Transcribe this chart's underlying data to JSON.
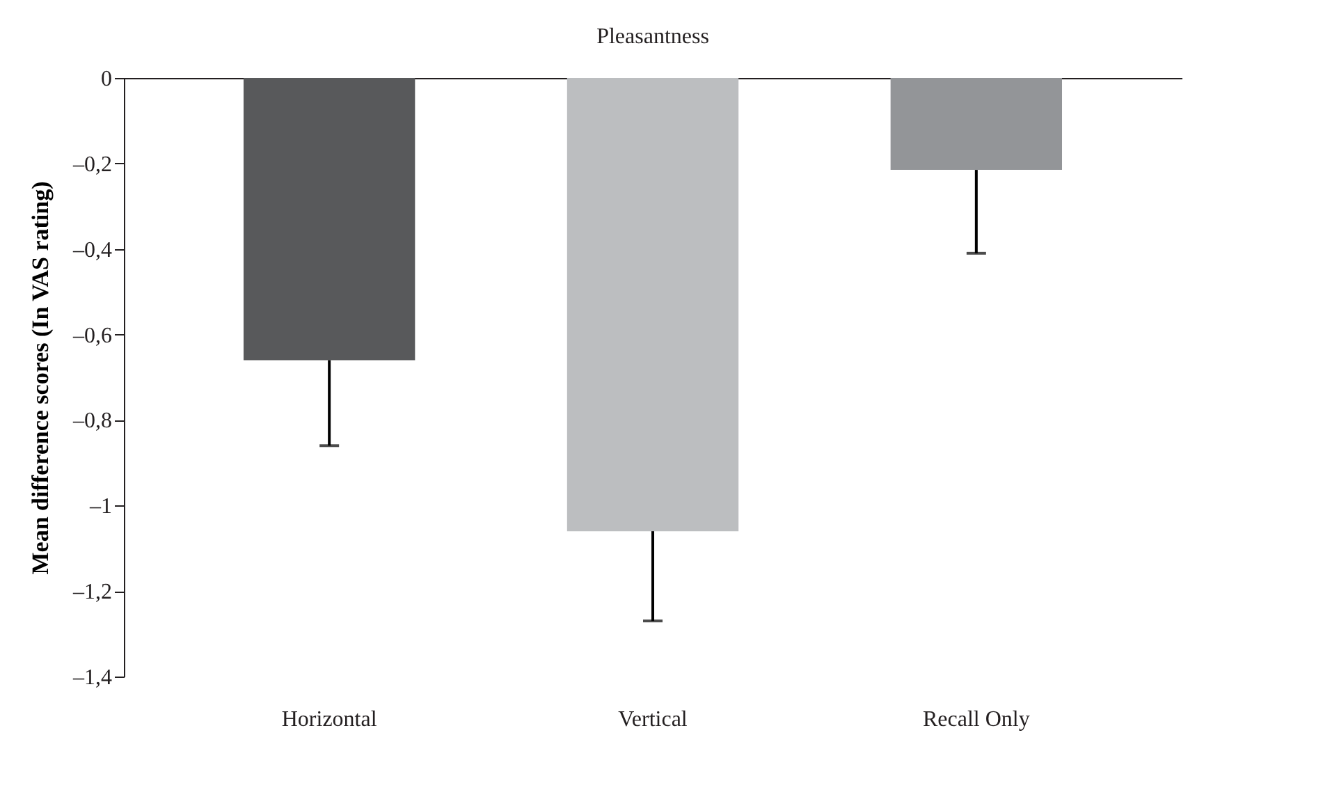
{
  "chart_data": {
    "type": "bar",
    "title": "Pleasantness",
    "ylabel": "Mean difference scores (In VAS rating)",
    "categories": [
      "Horizontal",
      "Vertical",
      "Recall Only"
    ],
    "values": [
      -0.66,
      -1.06,
      -0.215
    ],
    "colors": [
      "#58595b",
      "#bcbec0",
      "#939598"
    ],
    "errors": [
      [
        -0.86,
        -0.66
      ],
      [
        -1.27,
        -1.06
      ],
      [
        -0.41,
        -0.215
      ]
    ],
    "ylim": [
      -1.4,
      0
    ],
    "yticks": [
      0,
      {
        "value": -0.2,
        "label": "–0,2"
      },
      {
        "value": -0.4,
        "label": "–0,4"
      },
      {
        "value": -0.6,
        "label": "–0,6"
      },
      {
        "value": -0.8,
        "label": "–0,8"
      },
      {
        "value": -1,
        "label": "–1"
      },
      {
        "value": -1.2,
        "label": "–1,2"
      },
      {
        "value": -1.4,
        "label": "–1,4"
      }
    ],
    "grid": false
  }
}
